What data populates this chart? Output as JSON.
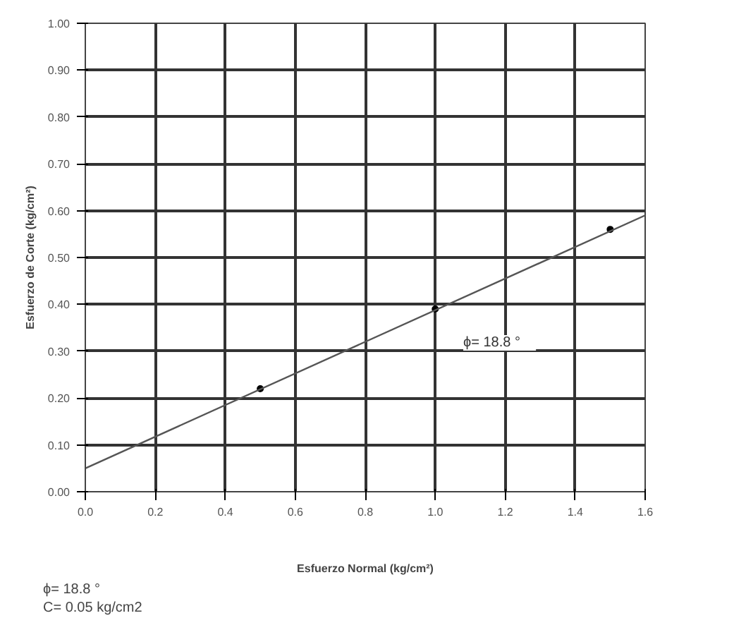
{
  "chart_data": {
    "type": "scatter",
    "xlabel": "Esfuerzo Normal (kg/cm²)",
    "ylabel": "Esfuerzo de Corte (kg/cm²)",
    "x": [
      0.5,
      1.0,
      1.5
    ],
    "series": [
      {
        "color": "#000000",
        "marker": "circle",
        "values": [
          0.22,
          0.39,
          0.56
        ]
      },
      {
        "type": "line",
        "color": "#555555",
        "x": [
          0.0,
          1.6
        ],
        "values": [
          0.05,
          0.59
        ]
      }
    ],
    "xlim": [
      0.0,
      1.6
    ],
    "xticks": [
      {
        "value": 0.0,
        "label": "0.0"
      },
      0.2,
      0.4,
      0.6,
      0.8,
      {
        "value": 1.0,
        "label": "1.0"
      },
      1.2,
      1.4,
      1.6
    ],
    "ylim": [
      0.0,
      1.0
    ],
    "yticks": [
      {
        "value": 0.0,
        "label": "0.00"
      },
      {
        "value": 0.1,
        "label": "0.10"
      },
      {
        "value": 0.2,
        "label": "0.20"
      },
      {
        "value": 0.3,
        "label": "0.30"
      },
      {
        "value": 0.4,
        "label": "0.40"
      },
      {
        "value": 0.5,
        "label": "0.50"
      },
      {
        "value": 0.6,
        "label": "0.60"
      },
      {
        "value": 0.7,
        "label": "0.70"
      },
      {
        "value": 0.8,
        "label": "0.80"
      },
      {
        "value": 0.9,
        "label": "0.90"
      },
      {
        "value": 1.0,
        "label": "1.00"
      }
    ],
    "grid": true,
    "annotations": [
      "ϕ=   18.8   °",
      "ϕ=   18.8   °",
      "C=   0.05   kg/cm2"
    ]
  }
}
